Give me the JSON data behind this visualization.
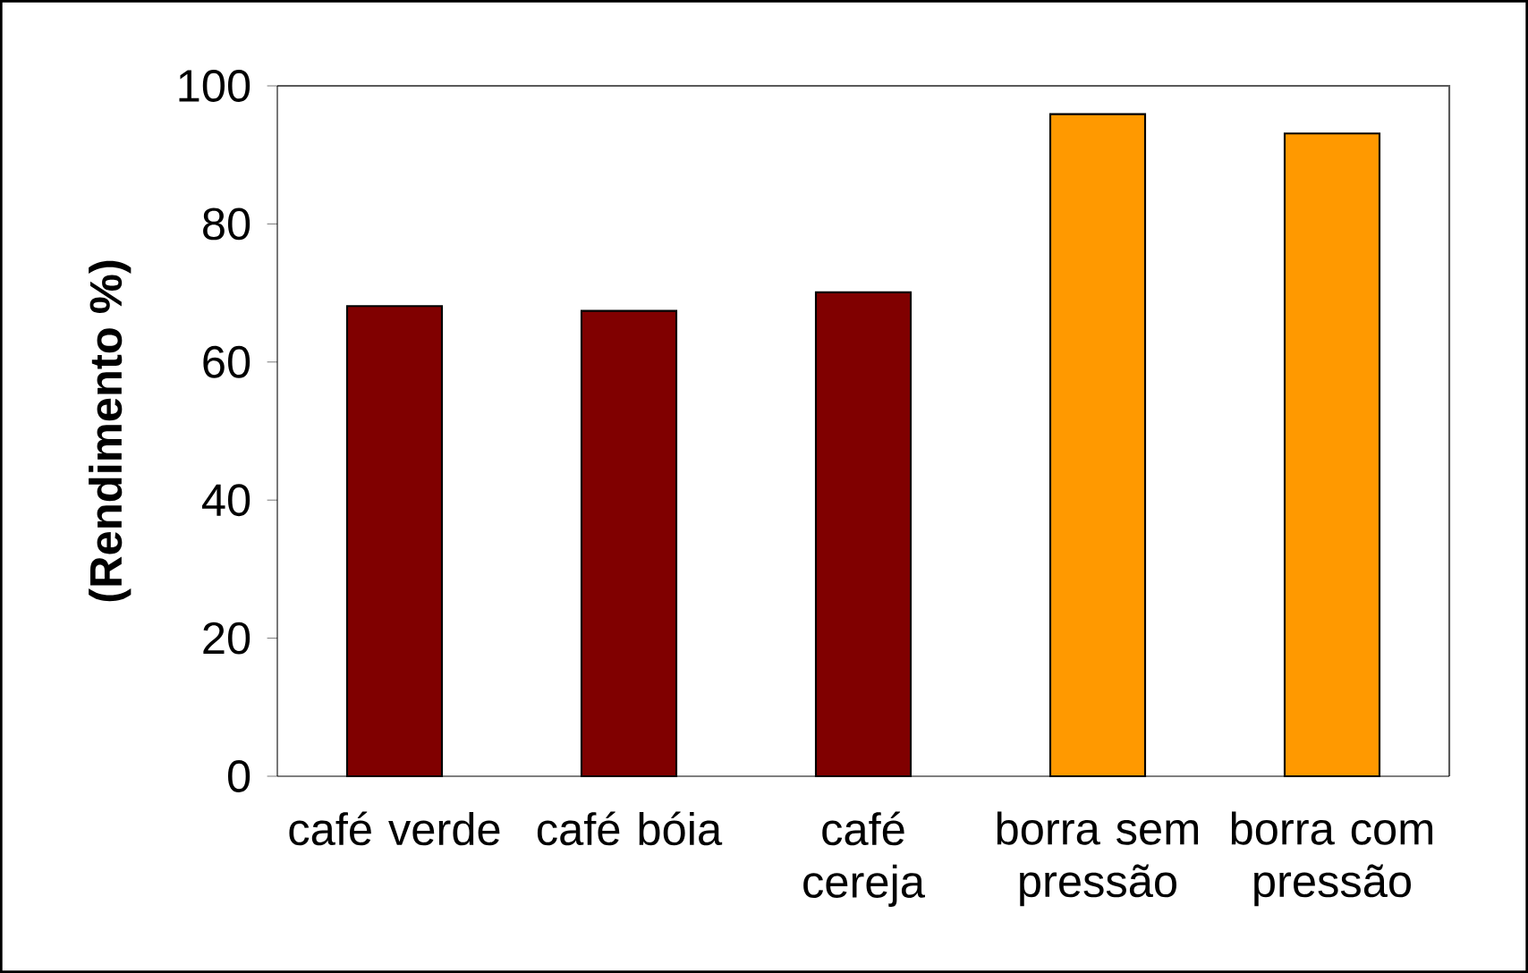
{
  "chart_data": {
    "type": "bar",
    "ylabel": "(Rendimento %)",
    "categories": [
      "café verde",
      "café bóia",
      "café cereja",
      "borra sem pressão",
      "borra com pressão"
    ],
    "values": [
      68.1,
      67.4,
      70.1,
      95.9,
      93.1
    ],
    "colors": [
      "#800000",
      "#800000",
      "#800000",
      "#ff9900",
      "#ff9900"
    ],
    "ylim": [
      0,
      100
    ],
    "yticks": [
      0,
      20,
      40,
      60,
      80,
      100
    ]
  }
}
